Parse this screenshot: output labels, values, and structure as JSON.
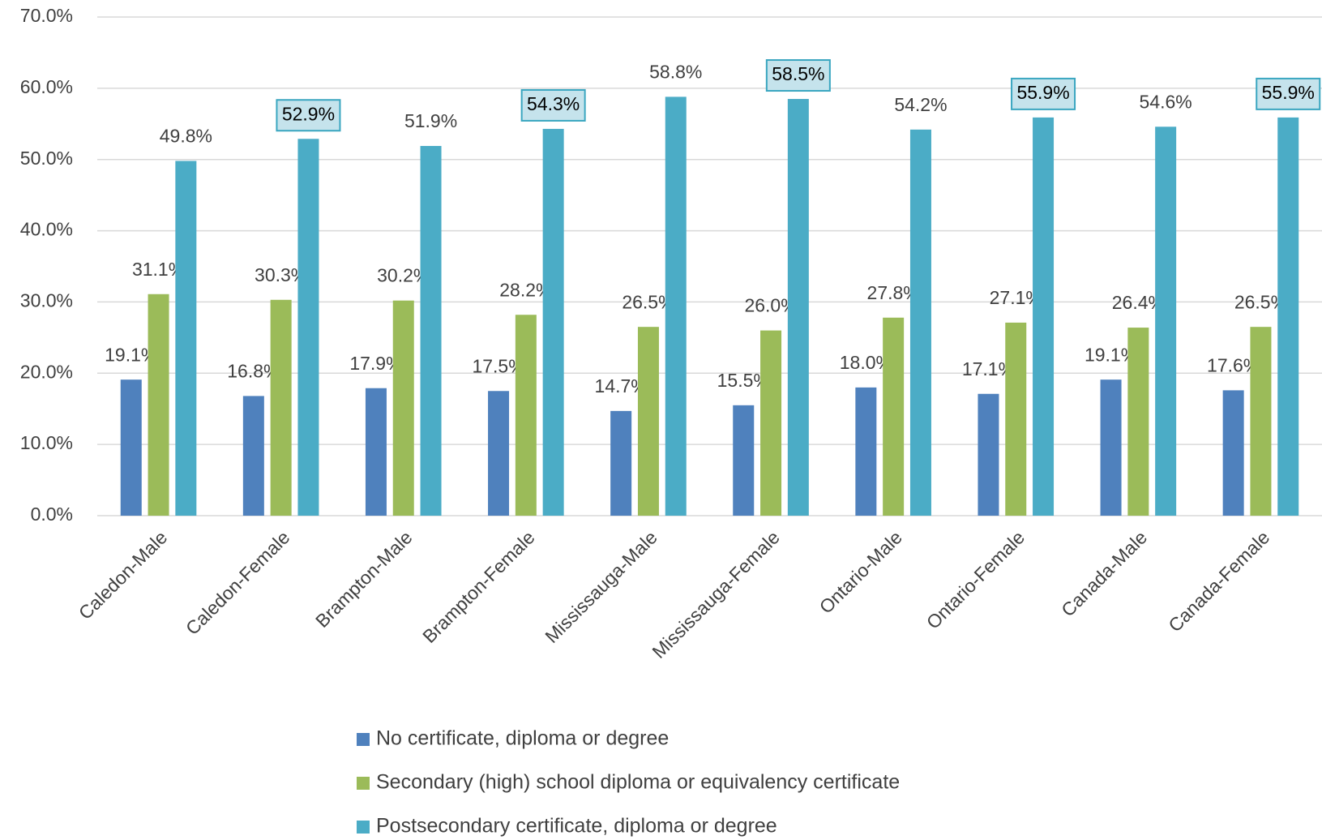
{
  "chart_data": {
    "type": "bar",
    "categories": [
      "Caledon-Male",
      "Caledon-Female",
      "Brampton-Male",
      "Brampton-Female",
      "Mississauga-Male",
      "Mississauga-Female",
      "Ontario-Male",
      "Ontario-Female",
      "Canada-Male",
      "Canada-Female"
    ],
    "series": [
      {
        "name": "No certificate, diploma or degree",
        "color": "#4f81bd",
        "values": [
          19.1,
          16.8,
          17.9,
          17.5,
          14.7,
          15.5,
          18.0,
          17.1,
          19.1,
          17.6
        ],
        "value_labels": [
          "19.1%",
          "16.8%",
          "17.9%",
          "17.5%",
          "14.7%",
          "15.5%",
          "18.0%",
          "17.1%",
          "19.1%",
          "17.6%"
        ]
      },
      {
        "name": "Secondary (high) school diploma or equivalency certificate",
        "color": "#9bbb59",
        "values": [
          31.1,
          30.3,
          30.2,
          28.2,
          26.5,
          26.0,
          27.8,
          27.1,
          26.4,
          26.5
        ],
        "value_labels": [
          "31.1%",
          "30.3%",
          "30.2%",
          "28.2%",
          "26.5%",
          "26.0%",
          "27.8%",
          "27.1%",
          "26.4%",
          "26.5%"
        ]
      },
      {
        "name": "Postsecondary certificate, diploma or degree",
        "color": "#4bacc6",
        "values": [
          49.8,
          52.9,
          51.9,
          54.3,
          58.8,
          58.5,
          54.2,
          55.9,
          54.6,
          55.9
        ],
        "value_labels": [
          "49.8%",
          "52.9%",
          "51.9%",
          "54.3%",
          "58.8%",
          "58.5%",
          "54.2%",
          "55.9%",
          "54.6%",
          "55.9%"
        ],
        "boxed_value_labels": [
          false,
          true,
          false,
          true,
          false,
          true,
          false,
          true,
          false,
          true
        ]
      }
    ],
    "ylim": [
      0,
      70
    ],
    "yticks": [
      {
        "value": 0,
        "label": "0.0%"
      },
      {
        "value": 10,
        "label": "10.0%"
      },
      {
        "value": 20,
        "label": "20.0%"
      },
      {
        "value": 30,
        "label": "30.0%"
      },
      {
        "value": 40,
        "label": "40.0%"
      },
      {
        "value": 50,
        "label": "50.0%"
      },
      {
        "value": 60,
        "label": "60.0%"
      },
      {
        "value": 70,
        "label": "70.0%"
      }
    ],
    "grid": true,
    "legend": "bottom"
  }
}
